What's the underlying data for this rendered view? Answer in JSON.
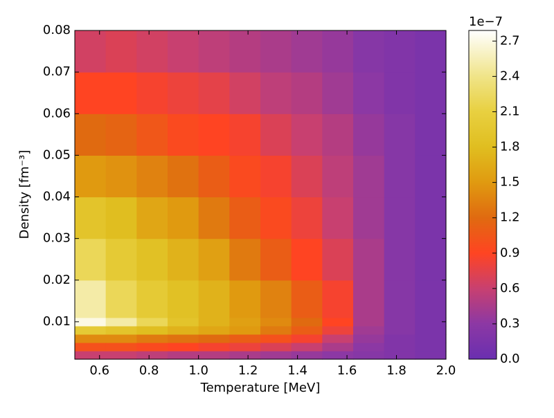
{
  "chart_data": {
    "type": "heatmap",
    "x_label": "Temperature [MeV]",
    "y_label": "Density [fm⁻³]",
    "xbins": [
      0.5,
      0.625,
      0.75,
      0.875,
      1.0,
      1.125,
      1.25,
      1.375,
      1.5,
      1.625,
      1.75,
      1.875,
      2.0
    ],
    "ybins": [
      0.001,
      0.003,
      0.005,
      0.007,
      0.009,
      0.011,
      0.02,
      0.03,
      0.04,
      0.05,
      0.06,
      0.07,
      0.08
    ],
    "z": [
      [
        0.6,
        0.6,
        0.55,
        0.5,
        0.5,
        0.45,
        0.4,
        0.35,
        0.3,
        0.25,
        0.2,
        0.15
      ],
      [
        1.0,
        1.0,
        0.95,
        0.9,
        0.85,
        0.8,
        0.7,
        0.6,
        0.45,
        0.3,
        0.2,
        0.15
      ],
      [
        1.4,
        1.4,
        1.3,
        1.25,
        1.2,
        1.1,
        1.0,
        0.85,
        0.6,
        0.35,
        0.2,
        0.15
      ],
      [
        2.0,
        1.9,
        1.8,
        1.7,
        1.6,
        1.5,
        1.3,
        1.1,
        0.8,
        0.4,
        0.25,
        0.15
      ],
      [
        2.7,
        2.5,
        2.2,
        1.9,
        1.7,
        1.55,
        1.4,
        1.2,
        0.9,
        0.45,
        0.25,
        0.15
      ],
      [
        2.5,
        2.2,
        2.0,
        1.85,
        1.7,
        1.5,
        1.35,
        1.1,
        0.85,
        0.45,
        0.25,
        0.15
      ],
      [
        2.2,
        2.0,
        1.85,
        1.7,
        1.55,
        1.3,
        1.1,
        0.9,
        0.7,
        0.45,
        0.25,
        0.15
      ],
      [
        1.9,
        1.8,
        1.6,
        1.5,
        1.3,
        1.1,
        0.95,
        0.8,
        0.6,
        0.4,
        0.25,
        0.15
      ],
      [
        1.5,
        1.45,
        1.35,
        1.25,
        1.1,
        0.95,
        0.85,
        0.7,
        0.55,
        0.4,
        0.25,
        0.15
      ],
      [
        1.2,
        1.15,
        1.05,
        0.95,
        0.9,
        0.85,
        0.7,
        0.6,
        0.5,
        0.35,
        0.25,
        0.15
      ],
      [
        0.9,
        0.9,
        0.85,
        0.8,
        0.75,
        0.65,
        0.55,
        0.5,
        0.4,
        0.3,
        0.2,
        0.15
      ],
      [
        0.65,
        0.7,
        0.65,
        0.6,
        0.55,
        0.5,
        0.45,
        0.4,
        0.35,
        0.25,
        0.2,
        0.15
      ]
    ],
    "xlim": [
      0.5,
      2.0
    ],
    "xticks": [
      0.6,
      0.8,
      {
        "value": 1.0,
        "label": "1.0"
      },
      1.2,
      1.4,
      1.6,
      1.8,
      {
        "value": 2.0,
        "label": "2.0"
      }
    ],
    "ylim": [
      0.001,
      0.08
    ],
    "yticks": [
      0.01,
      0.02,
      0.03,
      0.04,
      0.05,
      0.06,
      0.07,
      0.08
    ],
    "colorbar_offset": "1e−7",
    "clim": [
      0,
      2.79
    ],
    "cticks": [
      {
        "value": 0,
        "label": "0.0"
      },
      0.3,
      0.6,
      0.9,
      1.2,
      1.5,
      1.8,
      2.1,
      2.4,
      2.7
    ],
    "colormap": [
      [
        0,
        "#6a2fb0"
      ],
      [
        0.3,
        "#8c38a4"
      ],
      [
        0.6,
        "#c84070"
      ],
      [
        0.9,
        "#ff4422"
      ],
      [
        1.2,
        "#e06a10"
      ],
      [
        1.5,
        "#e09a10"
      ],
      [
        1.8,
        "#e0be20"
      ],
      [
        2.1,
        "#e8d040"
      ],
      [
        2.4,
        "#f0e488"
      ],
      [
        2.79,
        "#ffffff"
      ]
    ]
  }
}
